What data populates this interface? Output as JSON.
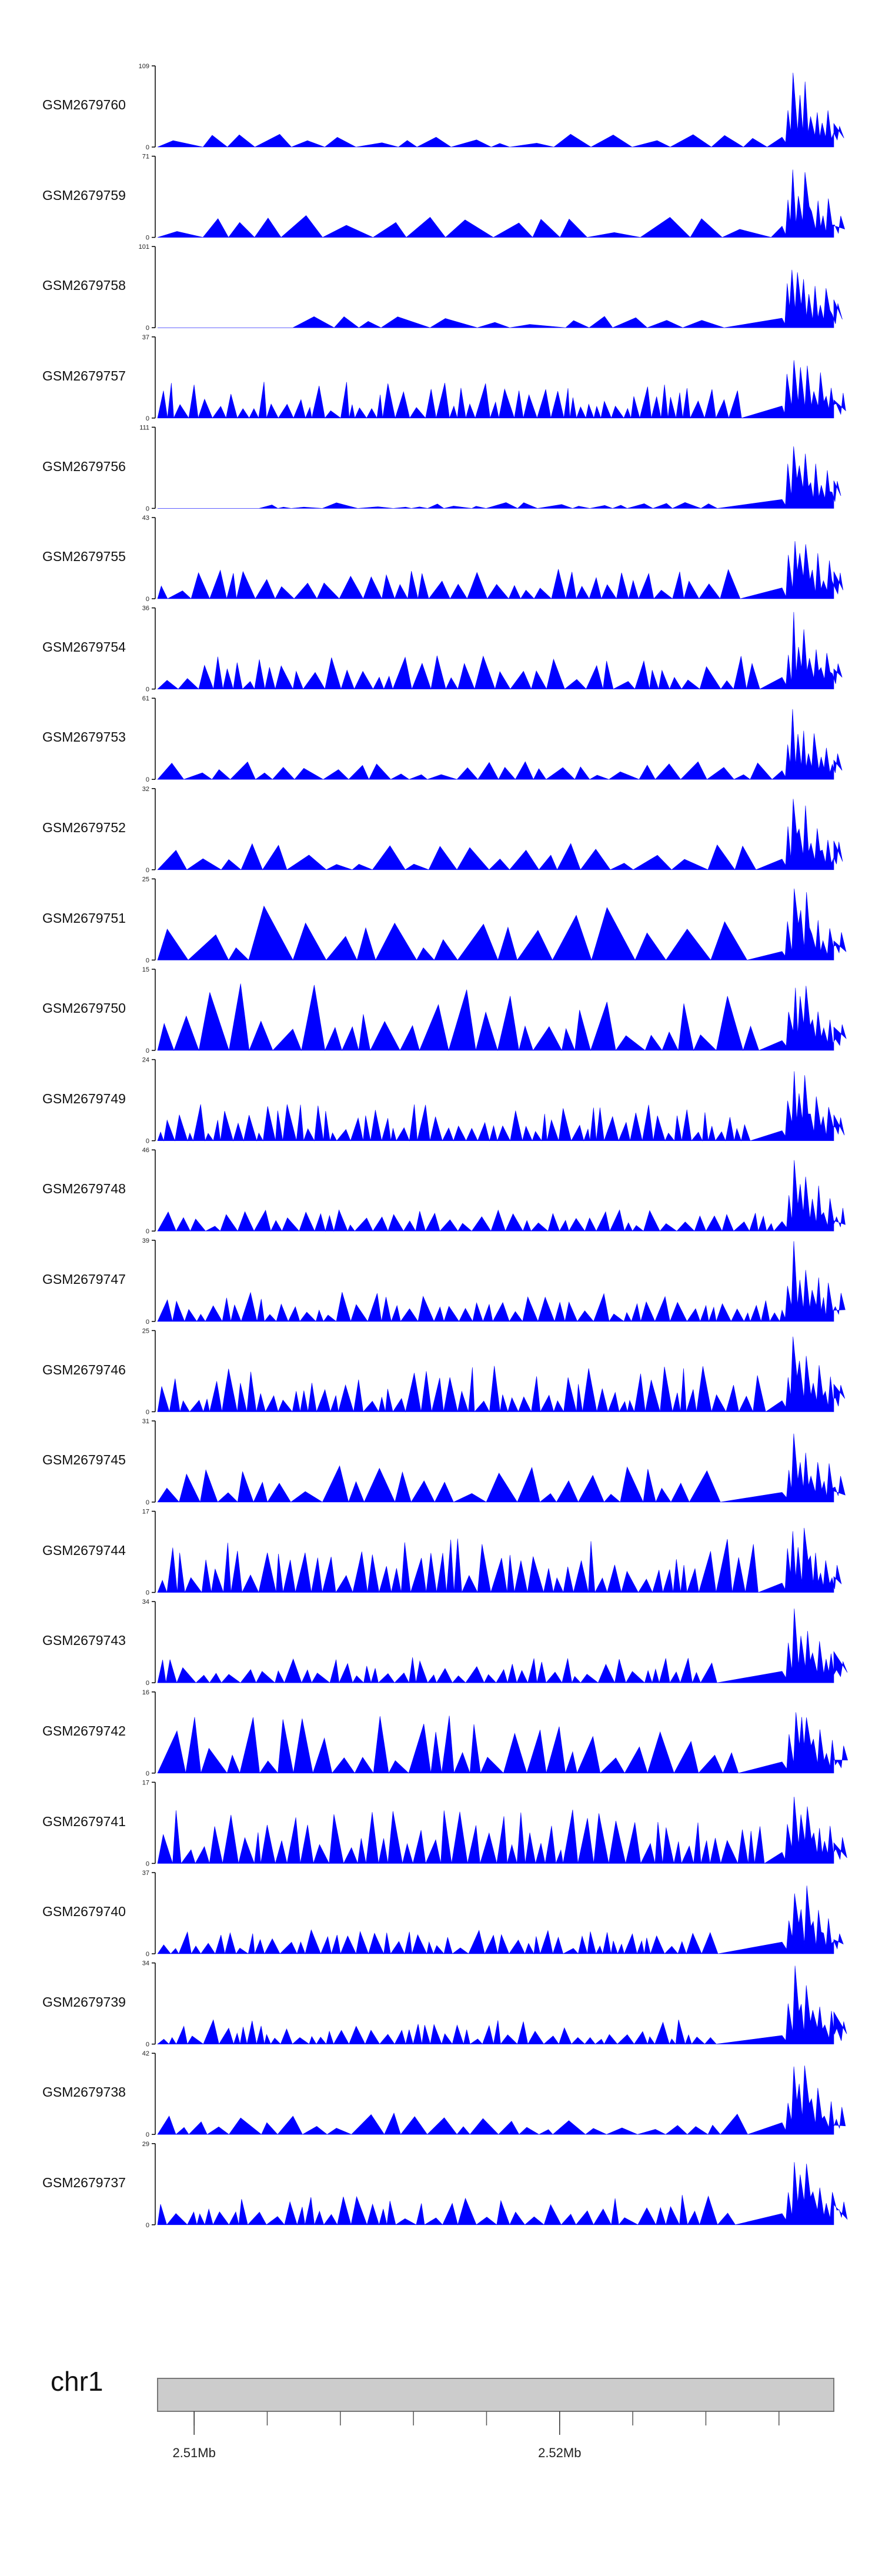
{
  "chart_data": {
    "type": "area",
    "title": "",
    "xlabel": "",
    "ylabel": "",
    "fill_color": "#0000ff",
    "axis_color": "#000000",
    "x_range_mb": [
      2.504,
      2.5225
    ],
    "tracks": [
      {
        "sample": "GSM2679760",
        "ymax": 109,
        "ymax_label": "109",
        "ymin_label": "0",
        "seed": 11,
        "density": 18,
        "level": 0.12
      },
      {
        "sample": "GSM2679759",
        "ymax": 71,
        "ymax_label": "71",
        "ymin_label": "0",
        "seed": 12,
        "density": 16,
        "level": 0.18
      },
      {
        "sample": "GSM2679758",
        "ymax": 101,
        "ymax_label": "101",
        "ymin_label": "0",
        "seed": 13,
        "density": 12,
        "level": 0.1
      },
      {
        "sample": "GSM2679757",
        "ymax": 37,
        "ymax_label": "37",
        "ymin_label": "0",
        "seed": 14,
        "density": 55,
        "level": 0.3
      },
      {
        "sample": "GSM2679756",
        "ymax": 111,
        "ymax_label": "111",
        "ymin_label": "0",
        "seed": 15,
        "density": 20,
        "level": 0.05
      },
      {
        "sample": "GSM2679755",
        "ymax": 43,
        "ymax_label": "43",
        "ymin_label": "0",
        "seed": 16,
        "density": 36,
        "level": 0.25
      },
      {
        "sample": "GSM2679754",
        "ymax": 36,
        "ymax_label": "36",
        "ymin_label": "0",
        "seed": 17,
        "density": 40,
        "level": 0.28
      },
      {
        "sample": "GSM2679753",
        "ymax": 61,
        "ymax_label": "61",
        "ymin_label": "0",
        "seed": 18,
        "density": 28,
        "level": 0.15
      },
      {
        "sample": "GSM2679752",
        "ymax": 32,
        "ymax_label": "32",
        "ymin_label": "0",
        "seed": 19,
        "density": 22,
        "level": 0.22
      },
      {
        "sample": "GSM2679751",
        "ymax": 25,
        "ymax_label": "25",
        "ymin_label": "0",
        "seed": 20,
        "density": 18,
        "level": 0.45
      },
      {
        "sample": "GSM2679750",
        "ymax": 15,
        "ymax_label": "15",
        "ymin_label": "0",
        "seed": 21,
        "density": 28,
        "level": 0.55
      },
      {
        "sample": "GSM2679749",
        "ymax": 24,
        "ymax_label": "24",
        "ymin_label": "0",
        "seed": 22,
        "density": 60,
        "level": 0.3
      },
      {
        "sample": "GSM2679748",
        "ymax": 46,
        "ymax_label": "46",
        "ymin_label": "0",
        "seed": 23,
        "density": 45,
        "level": 0.18
      },
      {
        "sample": "GSM2679747",
        "ymax": 39,
        "ymax_label": "39",
        "ymin_label": "0",
        "seed": 24,
        "density": 50,
        "level": 0.25
      },
      {
        "sample": "GSM2679746",
        "ymax": 25,
        "ymax_label": "25",
        "ymin_label": "0",
        "seed": 25,
        "density": 55,
        "level": 0.38
      },
      {
        "sample": "GSM2679745",
        "ymax": 31,
        "ymax_label": "31",
        "ymin_label": "0",
        "seed": 26,
        "density": 26,
        "level": 0.3
      },
      {
        "sample": "GSM2679744",
        "ymax": 17,
        "ymax_label": "17",
        "ymin_label": "0",
        "seed": 27,
        "density": 50,
        "level": 0.45
      },
      {
        "sample": "GSM2679743",
        "ymax": 34,
        "ymax_label": "34",
        "ymin_label": "0",
        "seed": 28,
        "density": 45,
        "level": 0.22
      },
      {
        "sample": "GSM2679742",
        "ymax": 16,
        "ymax_label": "16",
        "ymin_label": "0",
        "seed": 29,
        "density": 30,
        "level": 0.5
      },
      {
        "sample": "GSM2679741",
        "ymax": 17,
        "ymax_label": "17",
        "ymin_label": "0",
        "seed": 30,
        "density": 50,
        "level": 0.45
      },
      {
        "sample": "GSM2679740",
        "ymax": 37,
        "ymax_label": "37",
        "ymin_label": "0",
        "seed": 31,
        "density": 50,
        "level": 0.2
      },
      {
        "sample": "GSM2679739",
        "ymax": 34,
        "ymax_label": "34",
        "ymin_label": "0",
        "seed": 32,
        "density": 50,
        "level": 0.2
      },
      {
        "sample": "GSM2679738",
        "ymax": 42,
        "ymax_label": "42",
        "ymin_label": "0",
        "seed": 33,
        "density": 26,
        "level": 0.18
      },
      {
        "sample": "GSM2679737",
        "ymax": 29,
        "ymax_label": "29",
        "ymin_label": "0",
        "seed": 34,
        "density": 42,
        "level": 0.25
      }
    ],
    "genome_axis": {
      "chromosome": "chr1",
      "labels": [
        {
          "text": "2.51Mb",
          "pos_mb": 2.505
        },
        {
          "text": "2.52Mb",
          "pos_mb": 2.515
        }
      ],
      "minor_ticks_mb": [
        2.505,
        2.507,
        2.509,
        2.511,
        2.513,
        2.515,
        2.517,
        2.519,
        2.521
      ],
      "band_color": "#cccccc",
      "band_border": "#777777"
    }
  }
}
